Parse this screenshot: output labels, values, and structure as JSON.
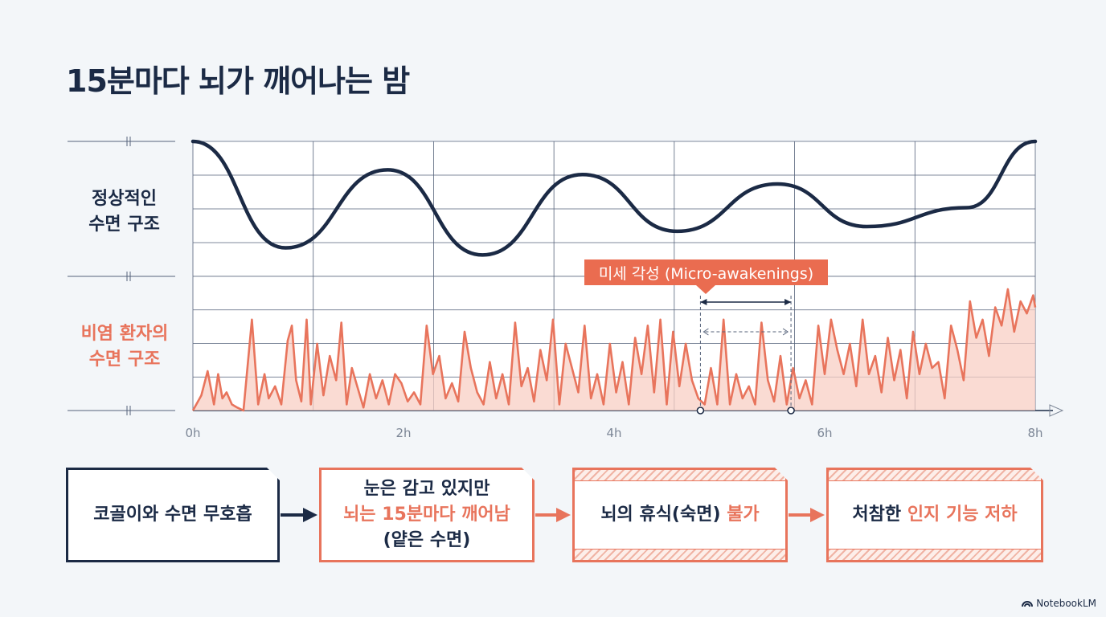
{
  "title": "15분마다 뇌가 깨어나는 밤",
  "brand": "NotebookLM",
  "colors": {
    "navy": "#1b2a45",
    "coral": "#e8745c",
    "coral_fill": "#f8cfc4"
  },
  "chart_data": {
    "type": "line",
    "x_label_unit": "h",
    "xlim": [
      0,
      8
    ],
    "x_ticks": [
      "0h",
      "2h",
      "4h",
      "6h",
      "8h"
    ],
    "series": [
      {
        "name": "정상적인 수면 구조",
        "label_lines": [
          "정상적인",
          "수면 구조"
        ],
        "color": "#1b2a45",
        "x": [
          0,
          0.88,
          1.85,
          2.75,
          3.7,
          4.6,
          5.55,
          6.4,
          7.35,
          8.0
        ],
        "y": [
          100,
          55,
          88,
          52,
          86,
          62,
          82,
          64,
          72,
          100
        ]
      },
      {
        "name": "비염 환자의 수면 구조",
        "label_lines": [
          "비염 환자의",
          "수면 구조"
        ],
        "color": "#e8745c",
        "x": [
          0,
          0.08,
          0.14,
          0.2,
          0.24,
          0.28,
          0.32,
          0.37,
          0.42,
          0.48,
          0.56,
          0.62,
          0.68,
          0.72,
          0.78,
          0.84,
          0.9,
          0.94,
          0.98,
          1.03,
          1.08,
          1.12,
          1.18,
          1.24,
          1.3,
          1.36,
          1.41,
          1.46,
          1.51,
          1.56,
          1.62,
          1.68,
          1.74,
          1.8,
          1.86,
          1.92,
          1.98,
          2.04,
          2.1,
          2.16,
          2.22,
          2.28,
          2.34,
          2.4,
          2.46,
          2.52,
          2.58,
          2.64,
          2.7,
          2.76,
          2.82,
          2.88,
          2.94,
          3.0,
          3.06,
          3.12,
          3.18,
          3.24,
          3.3,
          3.36,
          3.42,
          3.48,
          3.54,
          3.6,
          3.66,
          3.72,
          3.78,
          3.84,
          3.9,
          3.96,
          4.02,
          4.08,
          4.14,
          4.2,
          4.26,
          4.32,
          4.38,
          4.44,
          4.5,
          4.56,
          4.62,
          4.68,
          4.74,
          4.8,
          4.86,
          4.92,
          4.98,
          5.04,
          5.1,
          5.16,
          5.22,
          5.28,
          5.34,
          5.4,
          5.46,
          5.52,
          5.58,
          5.64,
          5.7,
          5.76,
          5.82,
          5.88,
          5.94,
          6.0,
          6.06,
          6.12,
          6.18,
          6.24,
          6.3,
          6.36,
          6.42,
          6.48,
          6.54,
          6.6,
          6.66,
          6.72,
          6.78,
          6.84,
          6.9,
          6.96,
          7.02,
          7.08,
          7.14,
          7.2,
          7.26,
          7.32,
          7.38,
          7.44,
          7.5,
          7.56,
          7.62,
          7.68,
          7.74,
          7.8,
          7.86,
          7.92,
          7.98,
          8.0
        ],
        "y": [
          0,
          5,
          13,
          2,
          12,
          4,
          6,
          2,
          1,
          0,
          30,
          2,
          12,
          4,
          8,
          2,
          23,
          28,
          10,
          3,
          30,
          2,
          22,
          5,
          18,
          10,
          29,
          2,
          14,
          8,
          1,
          12,
          4,
          10,
          2,
          12,
          9,
          3,
          6,
          2,
          28,
          12,
          18,
          4,
          9,
          3,
          26,
          14,
          6,
          2,
          16,
          4,
          12,
          2,
          29,
          8,
          14,
          3,
          20,
          10,
          30,
          2,
          22,
          14,
          6,
          28,
          4,
          12,
          2,
          22,
          6,
          16,
          2,
          24,
          12,
          28,
          6,
          30,
          2,
          26,
          8,
          22,
          10,
          4,
          2,
          14,
          2,
          30,
          2,
          12,
          4,
          8,
          2,
          29,
          10,
          3,
          18,
          2,
          14,
          4,
          10,
          2,
          28,
          12,
          30,
          20,
          12,
          22,
          8,
          30,
          12,
          18,
          6,
          24,
          10,
          20,
          4,
          26,
          12,
          22,
          14,
          16,
          4,
          28,
          20,
          10,
          36,
          24,
          30,
          18,
          34,
          28,
          40,
          26,
          36,
          32,
          38,
          34
        ]
      }
    ],
    "annotation": {
      "label": "미세 각성 (Micro-awakenings)",
      "x_start": 4.82,
      "x_end": 5.68
    }
  },
  "flow": [
    {
      "lines": [
        {
          "text": "코골이와 수면 무호흡",
          "accent": false
        }
      ]
    },
    {
      "lines": [
        {
          "text": "눈은 감고 있지만",
          "accent": false
        },
        {
          "text": "뇌는 15분마다 깨어남",
          "accent": true
        },
        {
          "text": "(얕은 수면)",
          "accent": false
        }
      ]
    },
    {
      "parts": [
        {
          "text": "뇌의 휴식(숙면) ",
          "accent": false
        },
        {
          "text": "불가",
          "accent": true
        }
      ]
    },
    {
      "parts": [
        {
          "text": "처참한 ",
          "accent": false
        },
        {
          "text": "인지 기능 저하",
          "accent": true
        }
      ]
    }
  ]
}
